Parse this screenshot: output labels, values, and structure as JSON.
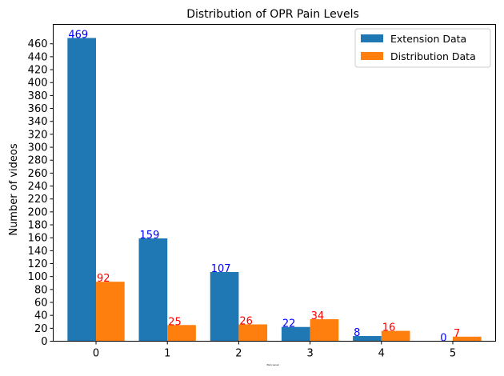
{
  "chart_data": {
    "type": "bar",
    "title": "Distribution of OPR Pain Levels",
    "xlabel": "Pain Level",
    "ylabel": "Number of videos",
    "categories": [
      "0",
      "1",
      "2",
      "3",
      "4",
      "5"
    ],
    "series": [
      {
        "name": "Extension Data",
        "values": [
          469,
          159,
          107,
          22,
          8,
          0
        ],
        "color": "#1f77b4",
        "label_color": "#0000ff"
      },
      {
        "name": "Distribution Data",
        "values": [
          92,
          25,
          26,
          34,
          16,
          7
        ],
        "color": "#ff7f0e",
        "label_color": "#ff0000"
      }
    ],
    "ylim": [
      0,
      490
    ],
    "ytick_step": 20,
    "yticks_max": 460,
    "legend_position": "top-right",
    "grid": false
  }
}
